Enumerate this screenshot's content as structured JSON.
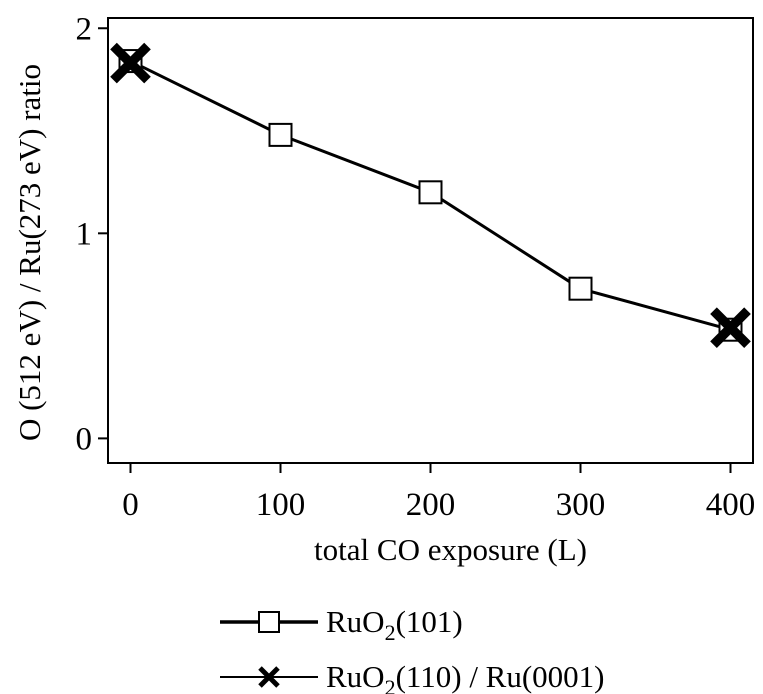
{
  "chart_data": {
    "type": "line",
    "title": "",
    "xlabel": "total CO exposure (L)",
    "ylabel": "O (512 eV) / Ru(273 eV) ratio",
    "xlim": [
      -15,
      415
    ],
    "ylim": [
      -0.12,
      2.05
    ],
    "x_ticks": [
      0,
      100,
      200,
      300,
      400
    ],
    "x_tick_labels": [
      "0",
      "100",
      "200",
      "300",
      "400"
    ],
    "y_ticks": [
      0,
      1,
      2
    ],
    "y_tick_labels": [
      "0",
      "1",
      "2"
    ],
    "grid": false,
    "legend_position": "bottom-center",
    "series": [
      {
        "name": "RuO2(101)",
        "marker": "open-square",
        "x": [
          0,
          100,
          200,
          300,
          400
        ],
        "y": [
          1.84,
          1.48,
          1.2,
          0.73,
          0.53
        ]
      },
      {
        "name": "RuO2(110) / Ru(0001)",
        "marker": "bold-cross",
        "x": [
          0,
          400
        ],
        "y": [
          1.83,
          0.54
        ]
      }
    ],
    "legend": [
      {
        "prefix": "RuO",
        "sub": "2",
        "suffix": "(101)"
      },
      {
        "prefix": "RuO",
        "sub": "2",
        "suffix": "(110) / Ru(0001)"
      }
    ],
    "colors": {
      "line": "#000000",
      "marker_fill": "#ffffff"
    }
  }
}
